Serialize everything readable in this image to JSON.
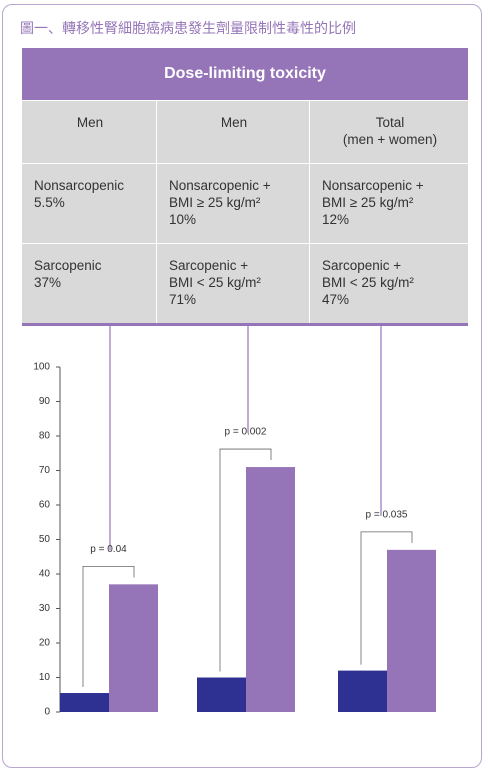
{
  "title": "圖一、轉移性腎細胞癌病患發生劑量限制性毒性的比例",
  "table": {
    "header": "Dose-limiting toxicity",
    "columns": [
      [
        "Men"
      ],
      [
        "Men"
      ],
      [
        "Total",
        "(men + women)"
      ]
    ],
    "rows": [
      [
        [
          "Nonsarcopenic",
          "5.5%"
        ],
        [
          "Nonsarcopenic +",
          "BMI ≥ 25 kg/m²",
          "10%"
        ],
        [
          "Nonsarcopenic +",
          "BMI ≥ 25 kg/m²",
          "12%"
        ]
      ],
      [
        [
          "Sarcopenic",
          "37%"
        ],
        [
          "Sarcopenic +",
          "BMI < 25 kg/m²",
          "71%"
        ],
        [
          "Sarcopenic +",
          "BMI < 25 kg/m²",
          "47%"
        ]
      ]
    ]
  },
  "chart_data": {
    "type": "bar",
    "series": [
      {
        "color": "#2e3192",
        "values": [
          5.5,
          10,
          12
        ]
      },
      {
        "color": "#9575b8",
        "values": [
          37,
          71,
          47
        ]
      }
    ],
    "annotations": [
      "p = 0.04",
      "p = 0.002",
      "p = 0.035"
    ],
    "ylim": [
      0,
      100
    ],
    "yticks": [
      0,
      10,
      20,
      30,
      40,
      50,
      60,
      70,
      80,
      90,
      100
    ],
    "grid": false
  }
}
